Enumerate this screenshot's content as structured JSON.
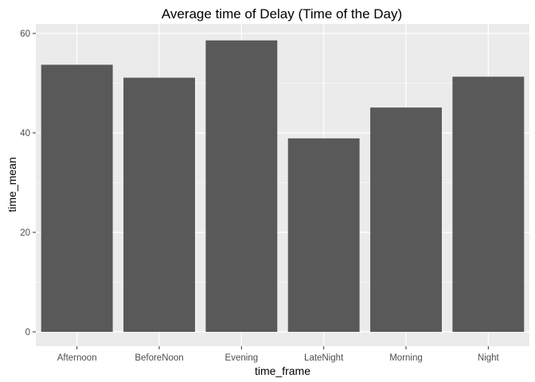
{
  "colors": {
    "panel_background": "#ebebeb",
    "grid_major": "#ffffff",
    "bar_fill": "#595959",
    "tick_text": "#4d4d4d",
    "text": "#000000"
  },
  "chart_data": {
    "type": "bar",
    "title": "Average time of Delay (Time of the Day)",
    "xlabel": "time_frame",
    "ylabel": "time_mean",
    "categories": [
      "Afternoon",
      "BeforeNoon",
      "Evening",
      "LateNight",
      "Morning",
      "Night"
    ],
    "values": [
      53.7,
      51.1,
      58.6,
      38.9,
      45.1,
      51.3
    ],
    "ylim": [
      0,
      62.5
    ],
    "yticks": [
      0,
      20,
      40,
      60
    ],
    "grid": true,
    "legend": "none"
  }
}
